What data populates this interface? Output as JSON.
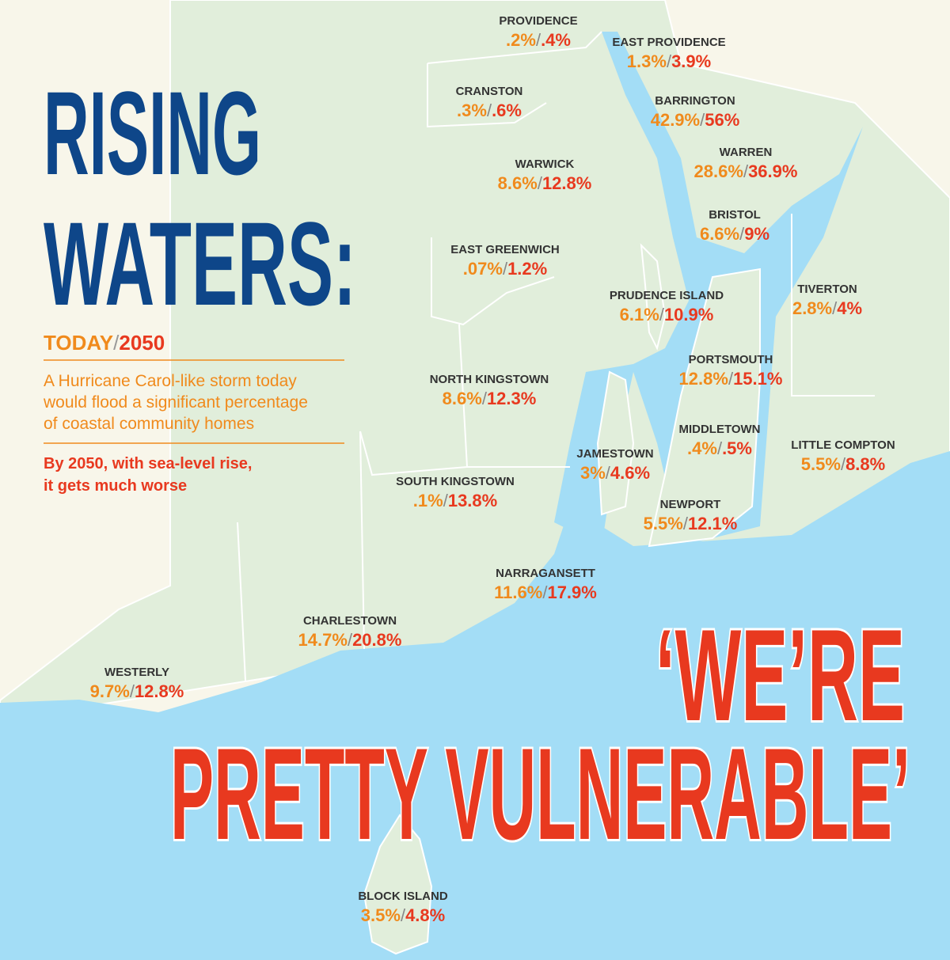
{
  "title": {
    "lines": [
      "RISING",
      "WATERS:"
    ]
  },
  "legend": {
    "today": "TODAY",
    "separator": "/",
    "future": "2050"
  },
  "description": {
    "lines": [
      "A Hurricane Carol-like storm today",
      "would flood a significant percentage",
      "of coastal community homes"
    ]
  },
  "note": {
    "lines": [
      "By 2050, with sea-level rise,",
      "it gets much worse"
    ]
  },
  "quote": {
    "lines": [
      "‘WE’RE",
      "PRETTY VULNERABLE’"
    ]
  },
  "towns": [
    {
      "name": "PROVIDENCE",
      "today": ".2%",
      "future": ".4%"
    },
    {
      "name": "EAST PROVIDENCE",
      "today": "1.3%",
      "future": "3.9%"
    },
    {
      "name": "CRANSTON",
      "today": ".3%",
      "future": ".6%"
    },
    {
      "name": "BARRINGTON",
      "today": "42.9%",
      "future": "56%"
    },
    {
      "name": "WARWICK",
      "today": "8.6%",
      "future": "12.8%"
    },
    {
      "name": "WARREN",
      "today": "28.6%",
      "future": "36.9%"
    },
    {
      "name": "BRISTOL",
      "today": "6.6%",
      "future": "9%"
    },
    {
      "name": "EAST GREENWICH",
      "today": ".07%",
      "future": "1.2%"
    },
    {
      "name": "PRUDENCE ISLAND",
      "today": "6.1%",
      "future": "10.9%"
    },
    {
      "name": "TIVERTON",
      "today": "2.8%",
      "future": "4%"
    },
    {
      "name": "PORTSMOUTH",
      "today": "12.8%",
      "future": "15.1%"
    },
    {
      "name": "NORTH KINGSTOWN",
      "today": "8.6%",
      "future": "12.3%"
    },
    {
      "name": "MIDDLETOWN",
      "today": ".4%",
      "future": ".5%"
    },
    {
      "name": "LITTLE COMPTON",
      "today": "5.5%",
      "future": "8.8%"
    },
    {
      "name": "JAMESTOWN",
      "today": "3%",
      "future": "4.6%"
    },
    {
      "name": "SOUTH KINGSTOWN",
      "today": ".1%",
      "future": "13.8%"
    },
    {
      "name": "NEWPORT",
      "today": "5.5%",
      "future": "12.1%"
    },
    {
      "name": "NARRAGANSETT",
      "today": "11.6%",
      "future": "17.9%"
    },
    {
      "name": "CHARLESTOWN",
      "today": "14.7%",
      "future": "20.8%"
    },
    {
      "name": "WESTERLY",
      "today": "9.7%",
      "future": "12.8%"
    },
    {
      "name": "BLOCK ISLAND",
      "today": "3.5%",
      "future": "4.8%"
    }
  ]
}
